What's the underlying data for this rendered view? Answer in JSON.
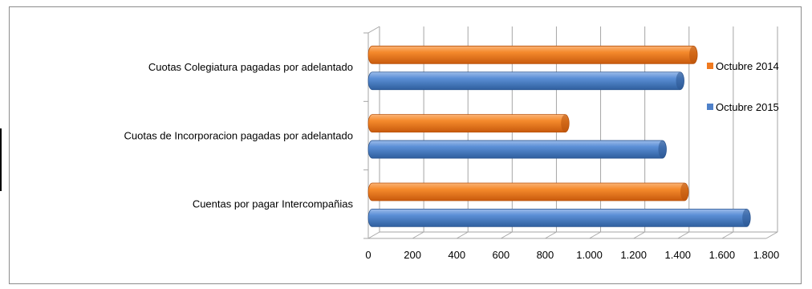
{
  "chart_data": {
    "type": "bar",
    "orientation": "horizontal",
    "style": "3d-cylinder",
    "categories": [
      "Cuotas Colegiatura pagadas por adelantado",
      "Cuotas de Incorporacion pagadas por adelantado",
      "Cuentas por pagar Intercompañias"
    ],
    "series": [
      {
        "name": "Octubre 2014",
        "color": "#f07a20",
        "values": [
          1470,
          890,
          1430
        ]
      },
      {
        "name": "Octubre 2015",
        "color": "#4f81c9",
        "values": [
          1410,
          1330,
          1710
        ]
      }
    ],
    "xlim": [
      0,
      1800
    ],
    "xticks": [
      0,
      200,
      400,
      600,
      800,
      1000,
      1200,
      1400,
      1600,
      1800
    ],
    "xtick_labels": [
      "0",
      "200",
      "400",
      "600",
      "800",
      "1.000",
      "1.200",
      "1.400",
      "1.600",
      "1.800"
    ],
    "grid": true,
    "legend_position": "right"
  }
}
